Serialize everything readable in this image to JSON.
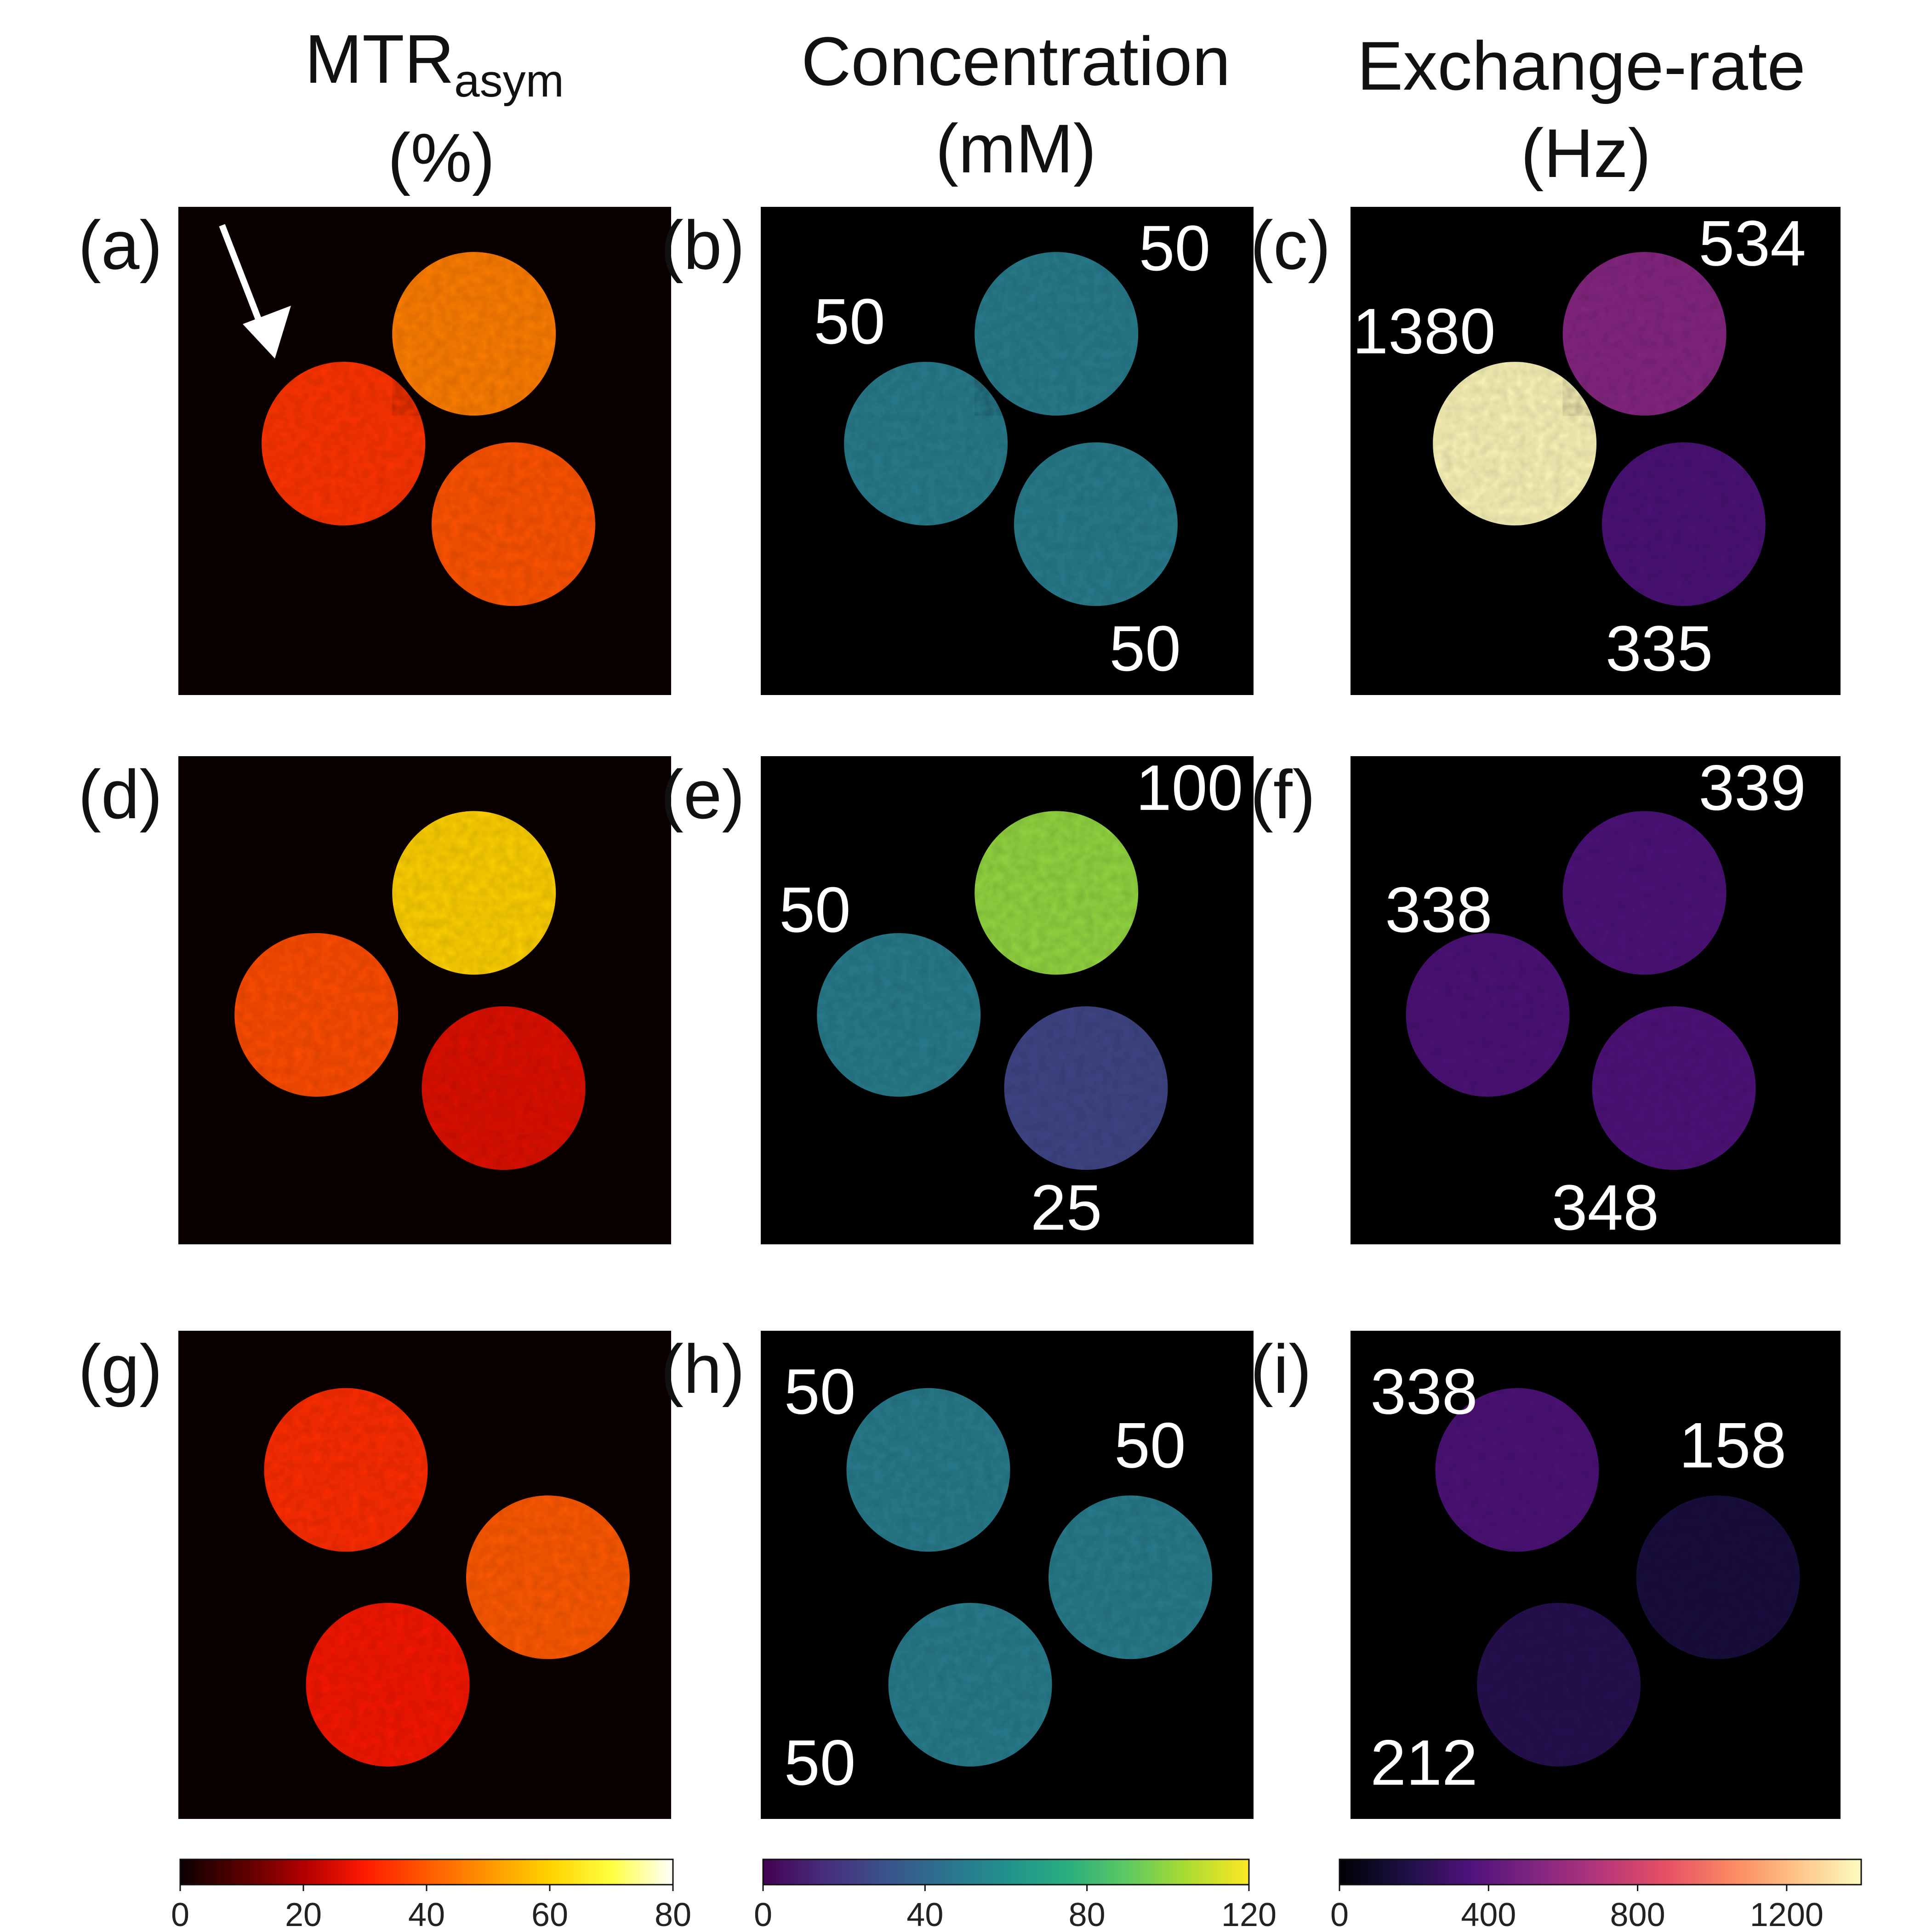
{
  "columns": [
    {
      "title_main": "MTR",
      "title_sub": "asym",
      "unit": "(%)"
    },
    {
      "title_main": "Concentration",
      "title_sub": "",
      "unit": "(mM)"
    },
    {
      "title_main": "Exchange-rate",
      "title_sub": "",
      "unit": "(Hz)"
    }
  ],
  "chart_data": {
    "type": "heatmap",
    "description_free": true,
    "panels": [
      {
        "label": "(a)",
        "map": "mtr",
        "arrow": true,
        "phantoms": [
          {
            "pos": "left",
            "value": 34
          },
          {
            "pos": "top-right",
            "value": 46
          },
          {
            "pos": "bottom-right",
            "value": 39
          }
        ],
        "annotations": []
      },
      {
        "label": "(b)",
        "map": "conc",
        "phantoms": [
          {
            "pos": "left",
            "value": 50
          },
          {
            "pos": "top-right",
            "value": 50
          },
          {
            "pos": "bottom-right",
            "value": 50
          }
        ],
        "annotations": [
          {
            "text": "50",
            "anchor": "left"
          },
          {
            "text": "50",
            "anchor": "top-right"
          },
          {
            "text": "50",
            "anchor": "bottom-right"
          }
        ]
      },
      {
        "label": "(c)",
        "map": "kex",
        "phantoms": [
          {
            "pos": "left",
            "value": 1380
          },
          {
            "pos": "top-right",
            "value": 534
          },
          {
            "pos": "bottom-right",
            "value": 335
          }
        ],
        "annotations": [
          {
            "text": "1380",
            "anchor": "left"
          },
          {
            "text": "534",
            "anchor": "top-right"
          },
          {
            "text": "335",
            "anchor": "bottom-right"
          }
        ]
      },
      {
        "label": "(d)",
        "map": "mtr",
        "phantoms": [
          {
            "pos": "left",
            "value": 38
          },
          {
            "pos": "top-right",
            "value": 60
          },
          {
            "pos": "bottom-right",
            "value": 26
          }
        ],
        "annotations": []
      },
      {
        "label": "(e)",
        "map": "conc",
        "phantoms": [
          {
            "pos": "left",
            "value": 50
          },
          {
            "pos": "top-right",
            "value": 100
          },
          {
            "pos": "bottom-right",
            "value": 25
          }
        ],
        "annotations": [
          {
            "text": "50",
            "anchor": "left"
          },
          {
            "text": "100",
            "anchor": "top-right"
          },
          {
            "text": "25",
            "anchor": "bottom-right"
          }
        ]
      },
      {
        "label": "(f)",
        "map": "kex",
        "phantoms": [
          {
            "pos": "left",
            "value": 338
          },
          {
            "pos": "top-right",
            "value": 339
          },
          {
            "pos": "bottom-right",
            "value": 348
          }
        ],
        "annotations": [
          {
            "text": "338",
            "anchor": "left"
          },
          {
            "text": "339",
            "anchor": "top-right"
          },
          {
            "text": "348",
            "anchor": "bottom-right"
          }
        ]
      },
      {
        "label": "(g)",
        "map": "mtr",
        "phantoms": [
          {
            "pos": "top-left",
            "value": 33
          },
          {
            "pos": "right",
            "value": 40
          },
          {
            "pos": "bottom-left",
            "value": 29
          }
        ],
        "annotations": []
      },
      {
        "label": "(h)",
        "map": "conc",
        "phantoms": [
          {
            "pos": "top-left",
            "value": 50
          },
          {
            "pos": "right",
            "value": 50
          },
          {
            "pos": "bottom-left",
            "value": 50
          }
        ],
        "annotations": [
          {
            "text": "50",
            "anchor": "top-left"
          },
          {
            "text": "50",
            "anchor": "right"
          },
          {
            "text": "50",
            "anchor": "bottom-left"
          }
        ]
      },
      {
        "label": "(i)",
        "map": "kex",
        "phantoms": [
          {
            "pos": "top-left",
            "value": 338
          },
          {
            "pos": "right",
            "value": 158
          },
          {
            "pos": "bottom-left",
            "value": 212
          }
        ],
        "annotations": [
          {
            "text": "338",
            "anchor": "top-left"
          },
          {
            "text": "158",
            "anchor": "right"
          },
          {
            "text": "212",
            "anchor": "bottom-left"
          }
        ]
      }
    ],
    "colorbars": [
      {
        "map": "mtr",
        "colormap": "hot",
        "range": [
          0,
          80
        ],
        "ticks": [
          0,
          20,
          40,
          60,
          80
        ],
        "tick_labels": [
          "0",
          "20",
          "40",
          "60",
          "80"
        ]
      },
      {
        "map": "conc",
        "colormap": "viridis",
        "range": [
          0,
          120
        ],
        "ticks": [
          0,
          40,
          80,
          120
        ],
        "tick_labels": [
          "0",
          "40",
          "80",
          "120"
        ]
      },
      {
        "map": "kex",
        "colormap": "magma",
        "range": [
          0,
          1400
        ],
        "ticks": [
          0,
          400,
          800,
          1200
        ],
        "tick_labels": [
          "0",
          "400",
          "800",
          "1200"
        ]
      }
    ],
    "colormap_stops": {
      "hot": [
        "#0b0000",
        "#5a0000",
        "#b00000",
        "#ff1a00",
        "#ff5a00",
        "#ff9600",
        "#ffd200",
        "#ffff40",
        "#ffffff"
      ],
      "viridis": [
        "#440154",
        "#472d7b",
        "#3b528b",
        "#2c728e",
        "#21918c",
        "#28ae80",
        "#5ec962",
        "#addc30",
        "#fde725"
      ],
      "magma": [
        "#000004",
        "#1c1044",
        "#4f127b",
        "#812581",
        "#b5367a",
        "#e55064",
        "#fb8761",
        "#fec287",
        "#fcfdbf"
      ]
    }
  }
}
